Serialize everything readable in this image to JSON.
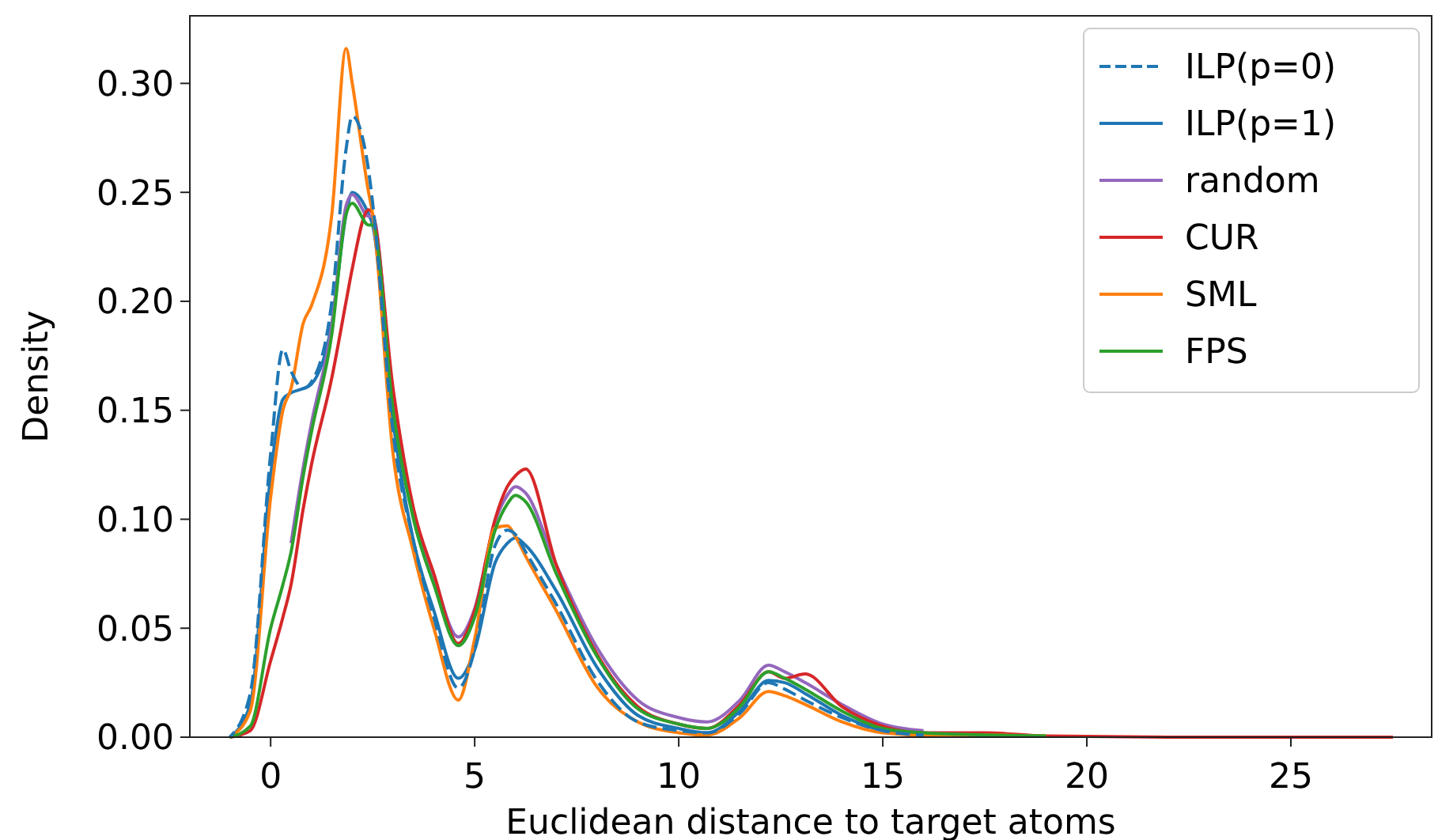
{
  "chart_data": {
    "type": "line",
    "xlabel": "Euclidean distance to target atoms",
    "ylabel": "Density",
    "x": [
      -1,
      -0.5,
      0,
      0.3,
      0.5,
      0.8,
      1,
      1.5,
      1.85,
      2,
      2.4,
      2.5,
      3,
      3.5,
      4,
      4.6,
      5,
      5.5,
      5.8,
      6,
      6.25,
      7,
      8,
      9,
      10,
      10.7,
      11.5,
      12.2,
      12.6,
      13.1,
      14,
      15,
      16,
      17.5,
      19,
      22,
      27.5
    ],
    "series": [
      {
        "name": "ILP(p=0)",
        "color": "#1f77b4",
        "line_style": "dashed",
        "values": [
          0,
          0.02,
          0.13,
          0.178,
          0.168,
          0.16,
          0.163,
          0.2,
          0.27,
          0.285,
          0.26,
          0.245,
          0.14,
          0.09,
          0.055,
          0.0225,
          0.04,
          0.088,
          0.095,
          0.093,
          0.085,
          0.061,
          0.026,
          0.007,
          0.003,
          0.002,
          0.011,
          0.025,
          0.022,
          0.017,
          0.009,
          0.003,
          0.001,
          null,
          null,
          null,
          null
        ]
      },
      {
        "name": "ILP(p=1)",
        "color": "#1f77b4",
        "line_style": "solid",
        "values": [
          0,
          0.015,
          0.12,
          0.155,
          0.158,
          0.16,
          0.162,
          0.19,
          0.24,
          0.25,
          0.24,
          0.235,
          0.145,
          0.09,
          0.058,
          0.027,
          0.04,
          0.08,
          0.089,
          0.0915,
          0.088,
          0.067,
          0.032,
          0.01,
          0.004,
          0.002,
          0.012,
          0.026,
          0.025,
          0.02,
          0.01,
          0.003,
          0.001,
          null,
          null,
          null,
          null
        ]
      },
      {
        "name": "random",
        "color": "#9467bd",
        "line_style": "solid",
        "values": [
          null,
          null,
          null,
          null,
          0.089,
          0.124,
          0.144,
          0.189,
          0.244,
          0.249,
          0.239,
          0.239,
          0.154,
          0.104,
          0.074,
          0.046,
          0.059,
          0.099,
          0.111,
          0.115,
          0.112,
          0.079,
          0.041,
          0.017,
          0.009,
          0.007,
          0.017,
          0.033,
          0.03,
          0.025,
          0.015,
          0.006,
          0.003,
          null,
          null,
          null,
          null
        ]
      },
      {
        "name": "CUR",
        "color": "#d62728",
        "line_style": "solid",
        "values": [
          0,
          0.003,
          0.035,
          0.055,
          0.07,
          0.105,
          0.125,
          0.165,
          0.2,
          0.215,
          0.242,
          0.24,
          0.16,
          0.105,
          0.075,
          0.043,
          0.058,
          0.1,
          0.115,
          0.12,
          0.123,
          0.079,
          0.038,
          0.014,
          0.006,
          0.004,
          0.015,
          0.03,
          0.027,
          0.029,
          0.014,
          0.005,
          0.002,
          0.002,
          0.0005,
          0,
          0
        ]
      },
      {
        "name": "SML",
        "color": "#ff7f0e",
        "line_style": "solid",
        "values": [
          0,
          0.012,
          0.11,
          0.15,
          0.16,
          0.19,
          0.198,
          0.24,
          0.316,
          0.3,
          0.25,
          0.24,
          0.13,
          0.085,
          0.05,
          0.017,
          0.045,
          0.096,
          0.097,
          0.092,
          0.083,
          0.058,
          0.023,
          0.007,
          0.002,
          0.001,
          0.009,
          0.021,
          0.019,
          0.015,
          0.007,
          0.002,
          0.001,
          0.001,
          0.0005,
          null,
          null
        ]
      },
      {
        "name": "FPS",
        "color": "#2ca02c",
        "line_style": "solid",
        "values": [
          0,
          0.005,
          0.05,
          0.07,
          0.085,
          0.12,
          0.14,
          0.185,
          0.24,
          0.245,
          0.235,
          0.235,
          0.15,
          0.1,
          0.07,
          0.042,
          0.055,
          0.095,
          0.107,
          0.111,
          0.108,
          0.075,
          0.037,
          0.013,
          0.006,
          0.004,
          0.014,
          0.03,
          0.027,
          0.022,
          0.012,
          0.004,
          0.002,
          0.001,
          0.0005,
          null,
          null
        ]
      }
    ],
    "xlim": [
      -1.98,
      28.45
    ],
    "ylim": [
      0,
      0.331
    ],
    "xticks": [
      0,
      5,
      10,
      15,
      20,
      25
    ],
    "yticks": [
      {
        "value": 0,
        "label": "0.00"
      },
      {
        "value": 0.05,
        "label": "0.05"
      },
      {
        "value": 0.1,
        "label": "0.10"
      },
      {
        "value": 0.15,
        "label": "0.15"
      },
      {
        "value": 0.2,
        "label": "0.20"
      },
      {
        "value": 0.25,
        "label": "0.25"
      },
      {
        "value": 0.3,
        "label": "0.30"
      }
    ],
    "legend": "top right",
    "grid": false,
    "marker": "none"
  }
}
